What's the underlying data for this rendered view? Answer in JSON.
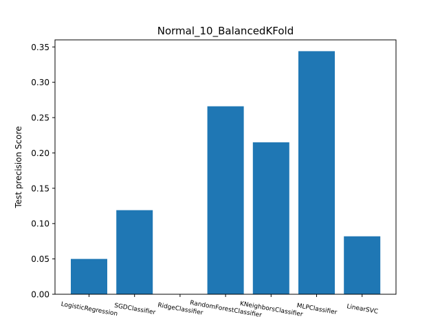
{
  "chart_data": {
    "type": "bar",
    "title": "Normal_10_BalancedKFold",
    "xlabel": "",
    "ylabel": "Test precision Score",
    "categories": [
      "LogisticRegression",
      "SGDClassifier",
      "RidgeClassifier",
      "RandomForestClassifier",
      "KNeighborsClassifier",
      "MLPClassifier",
      "LinearSVC"
    ],
    "values": [
      0.05,
      0.119,
      0.0,
      0.266,
      0.215,
      0.344,
      0.082
    ],
    "ylim": [
      0,
      0.36
    ],
    "yticks": [
      "0.00",
      "0.05",
      "0.10",
      "0.15",
      "0.20",
      "0.25",
      "0.30",
      "0.35"
    ],
    "bar_color": "#1f77b4",
    "grid": false,
    "legend": "none"
  }
}
